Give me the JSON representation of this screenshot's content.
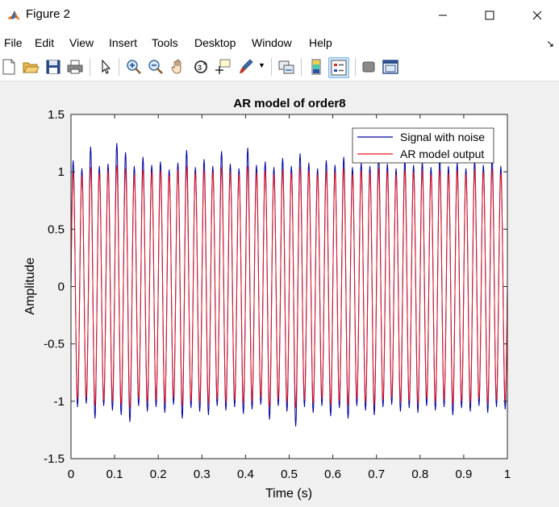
{
  "window": {
    "title": "Figure 2"
  },
  "menu": [
    "File",
    "Edit",
    "View",
    "Insert",
    "Tools",
    "Desktop",
    "Window",
    "Help"
  ],
  "toolbar": [
    "new-figure-icon",
    "open-icon",
    "save-icon",
    "print-icon",
    "pointer-icon",
    "zoom-in-icon",
    "zoom-out-icon",
    "pan-icon",
    "rotate-3d-icon",
    "data-cursor-icon",
    "brush-icon",
    "link-plot-icon",
    "colorbar-icon",
    "legend-icon",
    "hide-plot-tools-icon",
    "show-plot-tools-icon"
  ],
  "colors": {
    "signal": "#0000a0",
    "model": "#e8161b"
  },
  "chart_data": {
    "type": "line",
    "title": "AR model of order8",
    "xlabel": "Time (s)",
    "ylabel": "Amplitude",
    "xlim": [
      0,
      1
    ],
    "ylim": [
      -1.5,
      1.5
    ],
    "xticks": [
      "0",
      "0.1",
      "0.2",
      "0.3",
      "0.4",
      "0.5",
      "0.6",
      "0.7",
      "0.8",
      "0.9",
      "1"
    ],
    "yticks": [
      "1.5",
      "1",
      "0.5",
      "0",
      "-0.5",
      "-1",
      "-1.5"
    ],
    "grid": false,
    "legend_position": "top-right",
    "signal_frequency_hz": 50,
    "series": [
      {
        "name": "Signal with noise",
        "x_step": 0.001,
        "peak_values": [
          1.1,
          1.03,
          1.22,
          1.05,
          1.07,
          1.25,
          1.17,
          1.05,
          1.13,
          1.06,
          1.09,
          1.02,
          1.08,
          1.19,
          1.04,
          1.11,
          1.05,
          1.18,
          1.07,
          1.03,
          1.21,
          1.06,
          1.09,
          1.04,
          1.12,
          1.05,
          1.16,
          1.08,
          1.03,
          1.1,
          1.06,
          1.13,
          1.04,
          1.08,
          1.05,
          1.15,
          1.07,
          1.03,
          1.11,
          1.06,
          1.09,
          1.04,
          1.12,
          1.05,
          1.08,
          1.03,
          1.1,
          1.06,
          1.14,
          1.05
        ],
        "trough_values": [
          -1.05,
          -1.02,
          -1.15,
          -1.04,
          -1.08,
          -1.12,
          -1.18,
          -1.04,
          -1.09,
          -1.05,
          -1.1,
          -1.03,
          -1.15,
          -1.06,
          -1.09,
          -1.12,
          -1.04,
          -1.08,
          -1.05,
          -1.11,
          -1.07,
          -1.03,
          -1.16,
          -1.04,
          -1.09,
          -1.22,
          -1.05,
          -1.1,
          -1.04,
          -1.13,
          -1.06,
          -1.15,
          -1.04,
          -1.08,
          -1.12,
          -1.05,
          -1.03,
          -1.09,
          -1.06,
          -1.1,
          -1.04,
          -1.08,
          -1.05,
          -1.12,
          -1.06,
          -1.09,
          -1.04,
          -1.1,
          -1.05,
          -1.07
        ]
      },
      {
        "name": "AR model output",
        "x_step": 0.001,
        "peak_values": [
          1.0,
          0.97,
          1.04,
          0.99,
          1.01,
          1.06,
          1.03,
          0.98,
          1.02,
          1.0,
          1.01,
          0.97,
          1.02,
          1.05,
          0.99,
          1.02,
          1.0,
          1.04,
          1.0,
          0.98,
          1.05,
          0.99,
          1.01,
          0.98,
          1.02,
          0.99,
          1.04,
          1.01,
          0.98,
          1.01,
          1.0,
          1.03,
          0.98,
          1.01,
          0.99,
          1.03,
          1.0,
          0.98,
          1.02,
          1.0,
          1.01,
          0.98,
          1.02,
          0.99,
          1.01,
          0.98,
          1.02,
          1.0,
          1.03,
          0.99
        ],
        "trough_values": [
          -0.98,
          -0.97,
          -1.04,
          -0.99,
          -1.0,
          -1.03,
          -1.06,
          -0.98,
          -1.01,
          -0.99,
          -1.02,
          -0.97,
          -1.04,
          -1.0,
          -1.01,
          -1.03,
          -0.98,
          -1.01,
          -0.99,
          -1.02,
          -1.0,
          -0.97,
          -1.05,
          -0.98,
          -1.01,
          -1.06,
          -0.99,
          -1.02,
          -0.98,
          -1.03,
          -1.0,
          -1.04,
          -0.98,
          -1.01,
          -1.03,
          -0.99,
          -0.97,
          -1.01,
          -1.0,
          -1.02,
          -0.98,
          -1.01,
          -0.99,
          -1.03,
          -1.0,
          -1.01,
          -0.98,
          -1.02,
          -0.99,
          -1.0
        ]
      }
    ]
  }
}
